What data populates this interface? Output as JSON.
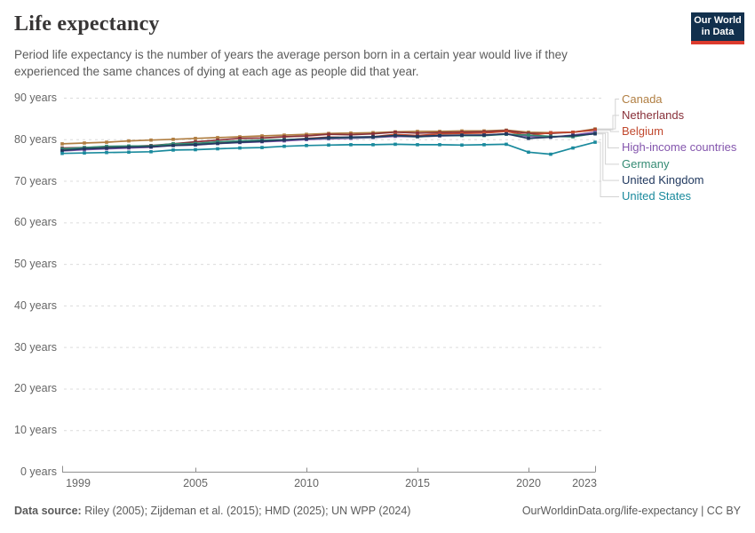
{
  "header": {
    "title": "Life expectancy",
    "subtitle": "Period life expectancy is the number of years the average person born in a certain year would live if they experienced the same chances of dying at each age as people did that year."
  },
  "logo": {
    "line1": "Our World",
    "line2": "in Data"
  },
  "brand": {
    "logo_bg": "#12304D",
    "logo_accent": "#DC3B2E",
    "title_color": "#383636",
    "muted_text": "#5b5b5b",
    "tick_text": "#666666",
    "grid_color": "#dcdcdc",
    "axis_color": "#8f8f8f",
    "connector_color": "#d3d3d3"
  },
  "footer": {
    "source_label": "Data source:",
    "source_text": " Riley (2005); Zijdeman et al. (2015); HMD (2025); UN WPP (2024)",
    "right_text": "OurWorldinData.org/life-expectancy | CC BY"
  },
  "chart_data": {
    "type": "line",
    "title": "Life expectancy",
    "xlabel": "",
    "ylabel": "years",
    "ylim": [
      0,
      90
    ],
    "grid": "horizontal-dashed",
    "legend_position": "right",
    "x": [
      1999,
      2000,
      2001,
      2002,
      2003,
      2004,
      2005,
      2006,
      2007,
      2008,
      2009,
      2010,
      2011,
      2012,
      2013,
      2014,
      2015,
      2016,
      2017,
      2018,
      2019,
      2020,
      2021,
      2022,
      2023
    ],
    "x_ticks": [
      {
        "year": 1999,
        "label": "1999"
      },
      {
        "year": 2005,
        "label": "2005"
      },
      {
        "year": 2010,
        "label": "2010"
      },
      {
        "year": 2015,
        "label": "2015"
      },
      {
        "year": 2020,
        "label": "2020"
      },
      {
        "year": 2023,
        "label": "2023"
      }
    ],
    "y_ticks": [
      {
        "value": 0,
        "label": "0 years"
      },
      {
        "value": 10,
        "label": "10 years"
      },
      {
        "value": 20,
        "label": "20 years"
      },
      {
        "value": 30,
        "label": "30 years"
      },
      {
        "value": 40,
        "label": "40 years"
      },
      {
        "value": 50,
        "label": "50 years"
      },
      {
        "value": 60,
        "label": "60 years"
      },
      {
        "value": 70,
        "label": "70 years"
      },
      {
        "value": 80,
        "label": "80 years"
      },
      {
        "value": 90,
        "label": "90 years"
      }
    ],
    "series": [
      {
        "name": "Canada",
        "color": "#B07E42",
        "values": [
          78.9,
          79.1,
          79.3,
          79.6,
          79.8,
          80.0,
          80.2,
          80.4,
          80.6,
          80.8,
          81.0,
          81.2,
          81.4,
          81.5,
          81.6,
          81.8,
          81.9,
          81.9,
          82.0,
          82.0,
          82.2,
          81.7,
          81.6,
          81.7,
          82.5
        ]
      },
      {
        "name": "Netherlands",
        "color": "#883039",
        "values": [
          77.9,
          78.0,
          78.2,
          78.3,
          78.5,
          78.9,
          79.4,
          79.8,
          80.2,
          80.3,
          80.6,
          80.8,
          81.2,
          81.1,
          81.3,
          81.7,
          81.5,
          81.6,
          81.7,
          81.8,
          82.1,
          81.4,
          81.4,
          81.7,
          82.3
        ]
      },
      {
        "name": "Belgium",
        "color": "#C1492F",
        "values": [
          77.4,
          77.7,
          77.9,
          78.0,
          78.1,
          78.7,
          78.8,
          79.3,
          79.5,
          79.7,
          79.8,
          80.2,
          80.5,
          80.4,
          80.6,
          81.2,
          80.9,
          81.3,
          81.4,
          81.5,
          81.9,
          80.9,
          81.6,
          81.7,
          82.2
        ]
      },
      {
        "name": "High-income countries",
        "color": "#8456AD",
        "values": [
          77.2,
          77.5,
          77.7,
          77.9,
          78.1,
          78.5,
          78.6,
          79.0,
          79.2,
          79.4,
          79.6,
          79.9,
          80.1,
          80.2,
          80.4,
          80.7,
          80.6,
          80.8,
          80.9,
          81.0,
          81.3,
          80.7,
          80.5,
          81.0,
          81.7
        ]
      },
      {
        "name": "Germany",
        "color": "#358B74",
        "values": [
          77.7,
          78.0,
          78.3,
          78.4,
          78.4,
          78.9,
          79.0,
          79.4,
          79.6,
          79.8,
          79.9,
          80.1,
          80.3,
          80.4,
          80.5,
          80.9,
          80.6,
          80.9,
          80.9,
          80.9,
          81.2,
          81.0,
          80.7,
          80.6,
          81.4
        ]
      },
      {
        "name": "United Kingdom",
        "color": "#21395F",
        "values": [
          77.3,
          77.7,
          77.9,
          78.1,
          78.2,
          78.5,
          78.7,
          79.0,
          79.3,
          79.5,
          79.8,
          80.1,
          80.4,
          80.5,
          80.6,
          80.9,
          80.7,
          80.9,
          81.0,
          81.0,
          81.3,
          80.2,
          80.5,
          80.9,
          81.3
        ]
      },
      {
        "name": "United States",
        "color": "#1A8A9D",
        "values": [
          76.6,
          76.7,
          76.8,
          76.9,
          77.0,
          77.4,
          77.5,
          77.7,
          77.9,
          78.0,
          78.3,
          78.5,
          78.6,
          78.7,
          78.7,
          78.8,
          78.7,
          78.7,
          78.6,
          78.7,
          78.8,
          76.9,
          76.4,
          77.9,
          79.3
        ]
      }
    ]
  }
}
